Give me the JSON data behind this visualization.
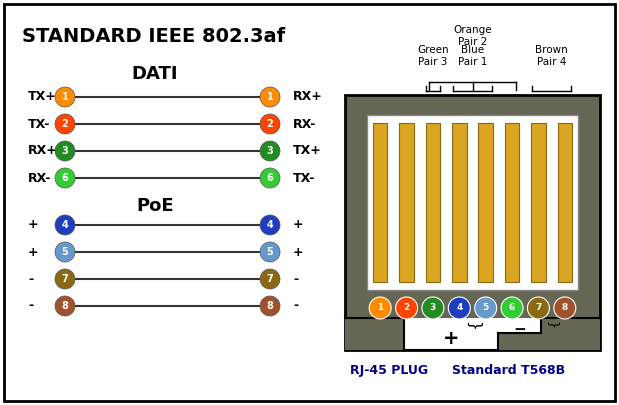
{
  "title": "STANDARD IEEE 802.3af",
  "bg_color": "#ffffff",
  "border_color": "#000000",
  "dati_label": "DATI",
  "poe_label": "PoE",
  "dati_rows": [
    {
      "left_sign": "TX+",
      "num": "1",
      "right_num": "1",
      "right_sign": "RX+"
    },
    {
      "left_sign": "TX-",
      "num": "2",
      "right_num": "2",
      "right_sign": "RX-"
    },
    {
      "left_sign": "RX+",
      "num": "3",
      "right_num": "3",
      "right_sign": "TX+"
    },
    {
      "left_sign": "RX-",
      "num": "6",
      "right_num": "6",
      "right_sign": "TX-"
    }
  ],
  "poe_rows": [
    {
      "left_sign": "+",
      "num": "4",
      "right_num": "4",
      "right_sign": "+"
    },
    {
      "left_sign": "+",
      "num": "5",
      "right_num": "5",
      "right_sign": "+"
    },
    {
      "left_sign": "-",
      "num": "7",
      "right_num": "7",
      "right_sign": "-"
    },
    {
      "left_sign": "-",
      "num": "8",
      "right_num": "8",
      "right_sign": "-"
    }
  ],
  "pin_colors": {
    "1": "#FF8C00",
    "2": "#FF4500",
    "3": "#228B22",
    "4": "#1E3EBF",
    "5": "#6699CC",
    "6": "#32CD32",
    "7": "#8B6914",
    "8": "#A0522D"
  },
  "plug_body_color": "#666655",
  "plug_contact_color": "#DAA520",
  "label_rj45": "RJ-45 PLUG",
  "label_standard": "Standard T568B",
  "text_color": "#000000",
  "label_color": "#00008B"
}
